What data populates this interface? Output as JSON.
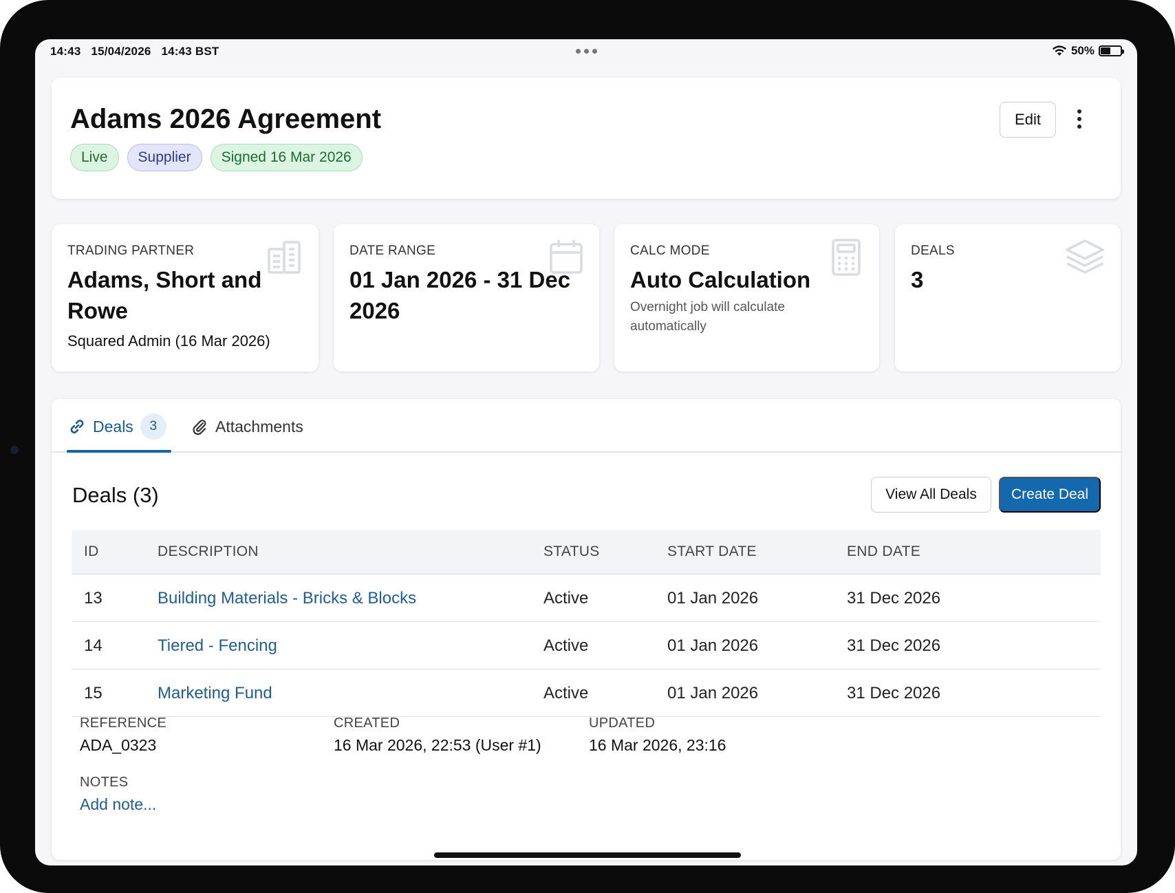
{
  "status_bar": {
    "time": "14:43",
    "date": "15/04/2026",
    "time_zone": "14:43 BST",
    "battery": "50%",
    "battery_level": 0.5
  },
  "header": {
    "title": "Adams 2026 Agreement",
    "badges": {
      "live": "Live",
      "supplier": "Supplier",
      "signed": "Signed 16 Mar 2026"
    },
    "edit_label": "Edit"
  },
  "stats": {
    "trading_partner": {
      "label": "TRADING PARTNER",
      "value": "Adams, Short and Rowe",
      "sub": "Squared Admin (16 Mar 2026)",
      "icon": "building-icon"
    },
    "date_range": {
      "label": "DATE RANGE",
      "value": "01 Jan 2026 - 31 Dec 2026",
      "icon": "calendar-icon"
    },
    "calc_mode": {
      "label": "CALC MODE",
      "value": "Auto Calculation",
      "sub": "Overnight job will calculate automatically",
      "icon": "calculator-icon"
    },
    "deals": {
      "label": "DEALS",
      "value": "3",
      "icon": "layers-icon"
    }
  },
  "tabs": {
    "deals": {
      "label": "Deals",
      "count": "3"
    },
    "attachments": {
      "label": "Attachments"
    }
  },
  "deals_section": {
    "title": "Deals (3)",
    "view_all_label": "View All Deals",
    "create_label": "Create Deal",
    "columns": {
      "id": "ID",
      "description": "DESCRIPTION",
      "status": "STATUS",
      "start_date": "START DATE",
      "end_date": "END DATE"
    },
    "rows": [
      {
        "id": "13",
        "description": "Building Materials - Bricks & Blocks",
        "status": "Active",
        "start_date": "01 Jan 2026",
        "end_date": "31 Dec 2026"
      },
      {
        "id": "14",
        "description": "Tiered - Fencing",
        "status": "Active",
        "start_date": "01 Jan 2026",
        "end_date": "31 Dec 2026"
      },
      {
        "id": "15",
        "description": "Marketing Fund",
        "status": "Active",
        "start_date": "01 Jan 2026",
        "end_date": "31 Dec 2026"
      }
    ]
  },
  "meta": {
    "reference": {
      "label": "REFERENCE",
      "value": "ADA_0323"
    },
    "created": {
      "label": "CREATED",
      "value": "16 Mar 2026, 22:53 (User #1)"
    },
    "updated": {
      "label": "UPDATED",
      "value": "16 Mar 2026, 23:16"
    },
    "notes": {
      "label": "NOTES",
      "placeholder": "Add note..."
    }
  },
  "colors": {
    "accent": "#1468ae",
    "link": "#1f5d92",
    "live_badge": "#dcf5e2",
    "supplier_badge": "#e3e5fa"
  }
}
